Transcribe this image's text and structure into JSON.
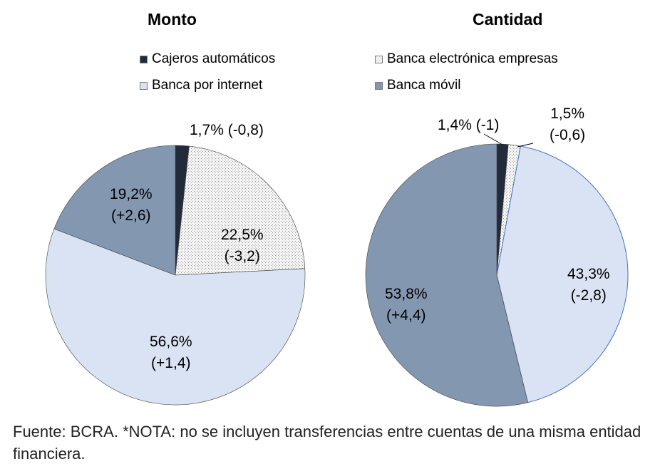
{
  "chart_data": [
    {
      "type": "pie",
      "title": "Monto",
      "start": "12 o'clock, clockwise",
      "slices": [
        {
          "name": "Cajeros automáticos",
          "value": 1.7,
          "label": "1,7% (-0,8)"
        },
        {
          "name": "Banca electrónica empresas",
          "value": 22.5,
          "label_pct": "22,5%",
          "label_chg": "(-3,2)"
        },
        {
          "name": "Banca por internet",
          "value": 56.6,
          "label_pct": "56,6%",
          "label_chg": "(+1,4)"
        },
        {
          "name": "Banca móvil",
          "value": 19.2,
          "label_pct": "19,2%",
          "label_chg": "(+2,6)"
        }
      ]
    },
    {
      "type": "pie",
      "title": "Cantidad",
      "start": "12 o'clock, clockwise",
      "slices": [
        {
          "name": "Cajeros automáticos",
          "value": 1.4,
          "label": "1,4% (-1)"
        },
        {
          "name": "Banca electrónica empresas",
          "value": 1.5,
          "label_pct": "1,5%",
          "label_chg": "(-0,6)"
        },
        {
          "name": "Banca por internet",
          "value": 43.3,
          "label_pct": "43,3%",
          "label_chg": "(-2,8)"
        },
        {
          "name": "Banca móvil",
          "value": 53.8,
          "label_pct": "53,8%",
          "label_chg": "(+4,4)"
        }
      ]
    }
  ],
  "legend": [
    "Cajeros automáticos",
    "Banca electrónica empresas",
    "Banca por internet",
    "Banca móvil"
  ],
  "colors": [
    "#222b3a",
    "#ececec",
    "#dae3f3",
    "#8497b0"
  ],
  "footnote": "Fuente: BCRA. *NOTA: no se incluyen transferencias entre cuentas de una misma entidad financiera."
}
